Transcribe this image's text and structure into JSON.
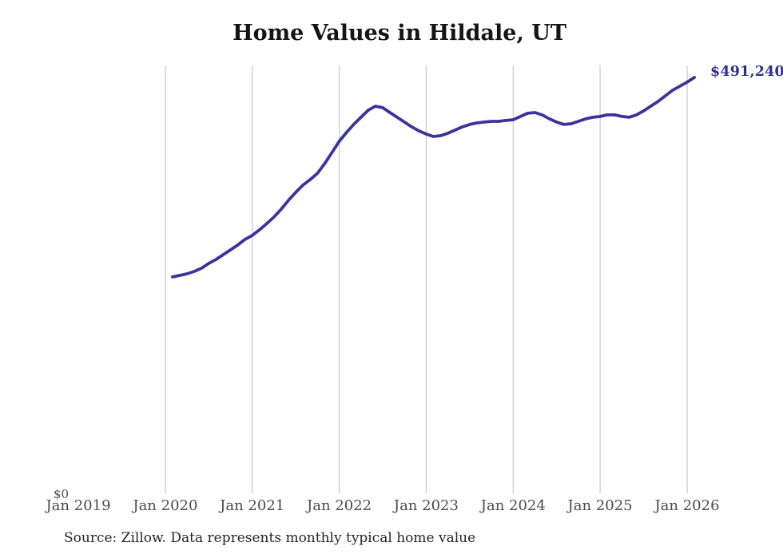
{
  "page": {
    "title": "Home Values in Hildale, UT",
    "end_value_label": "$491,240",
    "y_axis_zero_label": "$0",
    "source_note": "Source: Zillow. Data represents monthly typical home value"
  },
  "colors": {
    "line": "#3b339c",
    "end_label_text": "#2f2d92",
    "gridline": "#c9c9c9",
    "axis_tick_text": "#4b4b4b",
    "title_text": "#141414",
    "source_text": "#262626"
  },
  "chart_data": {
    "type": "line",
    "title": "Home Values in Hildale, UT",
    "xlabel": "",
    "ylabel": "",
    "ylim": [
      0,
      491240
    ],
    "x_axis_ticks": [
      "Jan 2019",
      "Jan 2020",
      "Jan 2021",
      "Jan 2022",
      "Jan 2023",
      "Jan 2024",
      "Jan 2025",
      "Jan 2026"
    ],
    "grid": "vertical gridlines at Jan 2020 through Jan 2026 only, no horizontal gridlines",
    "legend": "none",
    "end_annotation": "$491,240",
    "origin_annotation": "$0",
    "series": [
      {
        "name": "Monthly typical home value",
        "x": [
          "Feb 2020",
          "Mar 2020",
          "Apr 2020",
          "May 2020",
          "Jun 2020",
          "Jul 2020",
          "Aug 2020",
          "Sep 2020",
          "Oct 2020",
          "Nov 2020",
          "Dec 2020",
          "Jan 2021",
          "Feb 2021",
          "Mar 2021",
          "Apr 2021",
          "May 2021",
          "Jun 2021",
          "Jul 2021",
          "Aug 2021",
          "Sep 2021",
          "Oct 2021",
          "Nov 2021",
          "Dec 2021",
          "Jan 2022",
          "Feb 2022",
          "Mar 2022",
          "Apr 2022",
          "May 2022",
          "Jun 2022",
          "Jul 2022",
          "Aug 2022",
          "Sep 2022",
          "Oct 2022",
          "Nov 2022",
          "Dec 2022",
          "Jan 2023",
          "Feb 2023",
          "Mar 2023",
          "Apr 2023",
          "May 2023",
          "Jun 2023",
          "Jul 2023",
          "Aug 2023",
          "Sep 2023",
          "Oct 2023",
          "Nov 2023",
          "Dec 2023",
          "Jan 2024",
          "Feb 2024",
          "Mar 2024",
          "Apr 2024",
          "May 2024",
          "Jun 2024",
          "Jul 2024",
          "Aug 2024",
          "Sep 2024",
          "Oct 2024",
          "Nov 2024",
          "Dec 2024",
          "Jan 2025",
          "Feb 2025",
          "Mar 2025",
          "Apr 2025",
          "May 2025",
          "Jun 2025",
          "Jul 2025",
          "Aug 2025",
          "Sep 2025",
          "Oct 2025",
          "Nov 2025",
          "Dec 2025",
          "Jan 2026",
          "Feb 2026"
        ],
        "values": [
          255600,
          257400,
          259300,
          262100,
          265900,
          271600,
          276300,
          281900,
          287600,
          293300,
          299900,
          304600,
          311200,
          318700,
          326300,
          335700,
          346100,
          355500,
          364000,
          370600,
          378100,
          389500,
          402600,
          415800,
          426200,
          435700,
          444200,
          452600,
          457300,
          455500,
          449800,
          444200,
          438500,
          432900,
          428100,
          424400,
          421500,
          422500,
          425300,
          429100,
          432900,
          435700,
          437500,
          438500,
          439400,
          439400,
          440400,
          441300,
          445100,
          448900,
          449800,
          447000,
          442300,
          438500,
          435700,
          436600,
          439400,
          442300,
          444200,
          445100,
          447000,
          447000,
          445100,
          444200,
          447000,
          451700,
          457400,
          463000,
          469600,
          476200,
          480900,
          485700,
          491240
        ]
      }
    ]
  }
}
